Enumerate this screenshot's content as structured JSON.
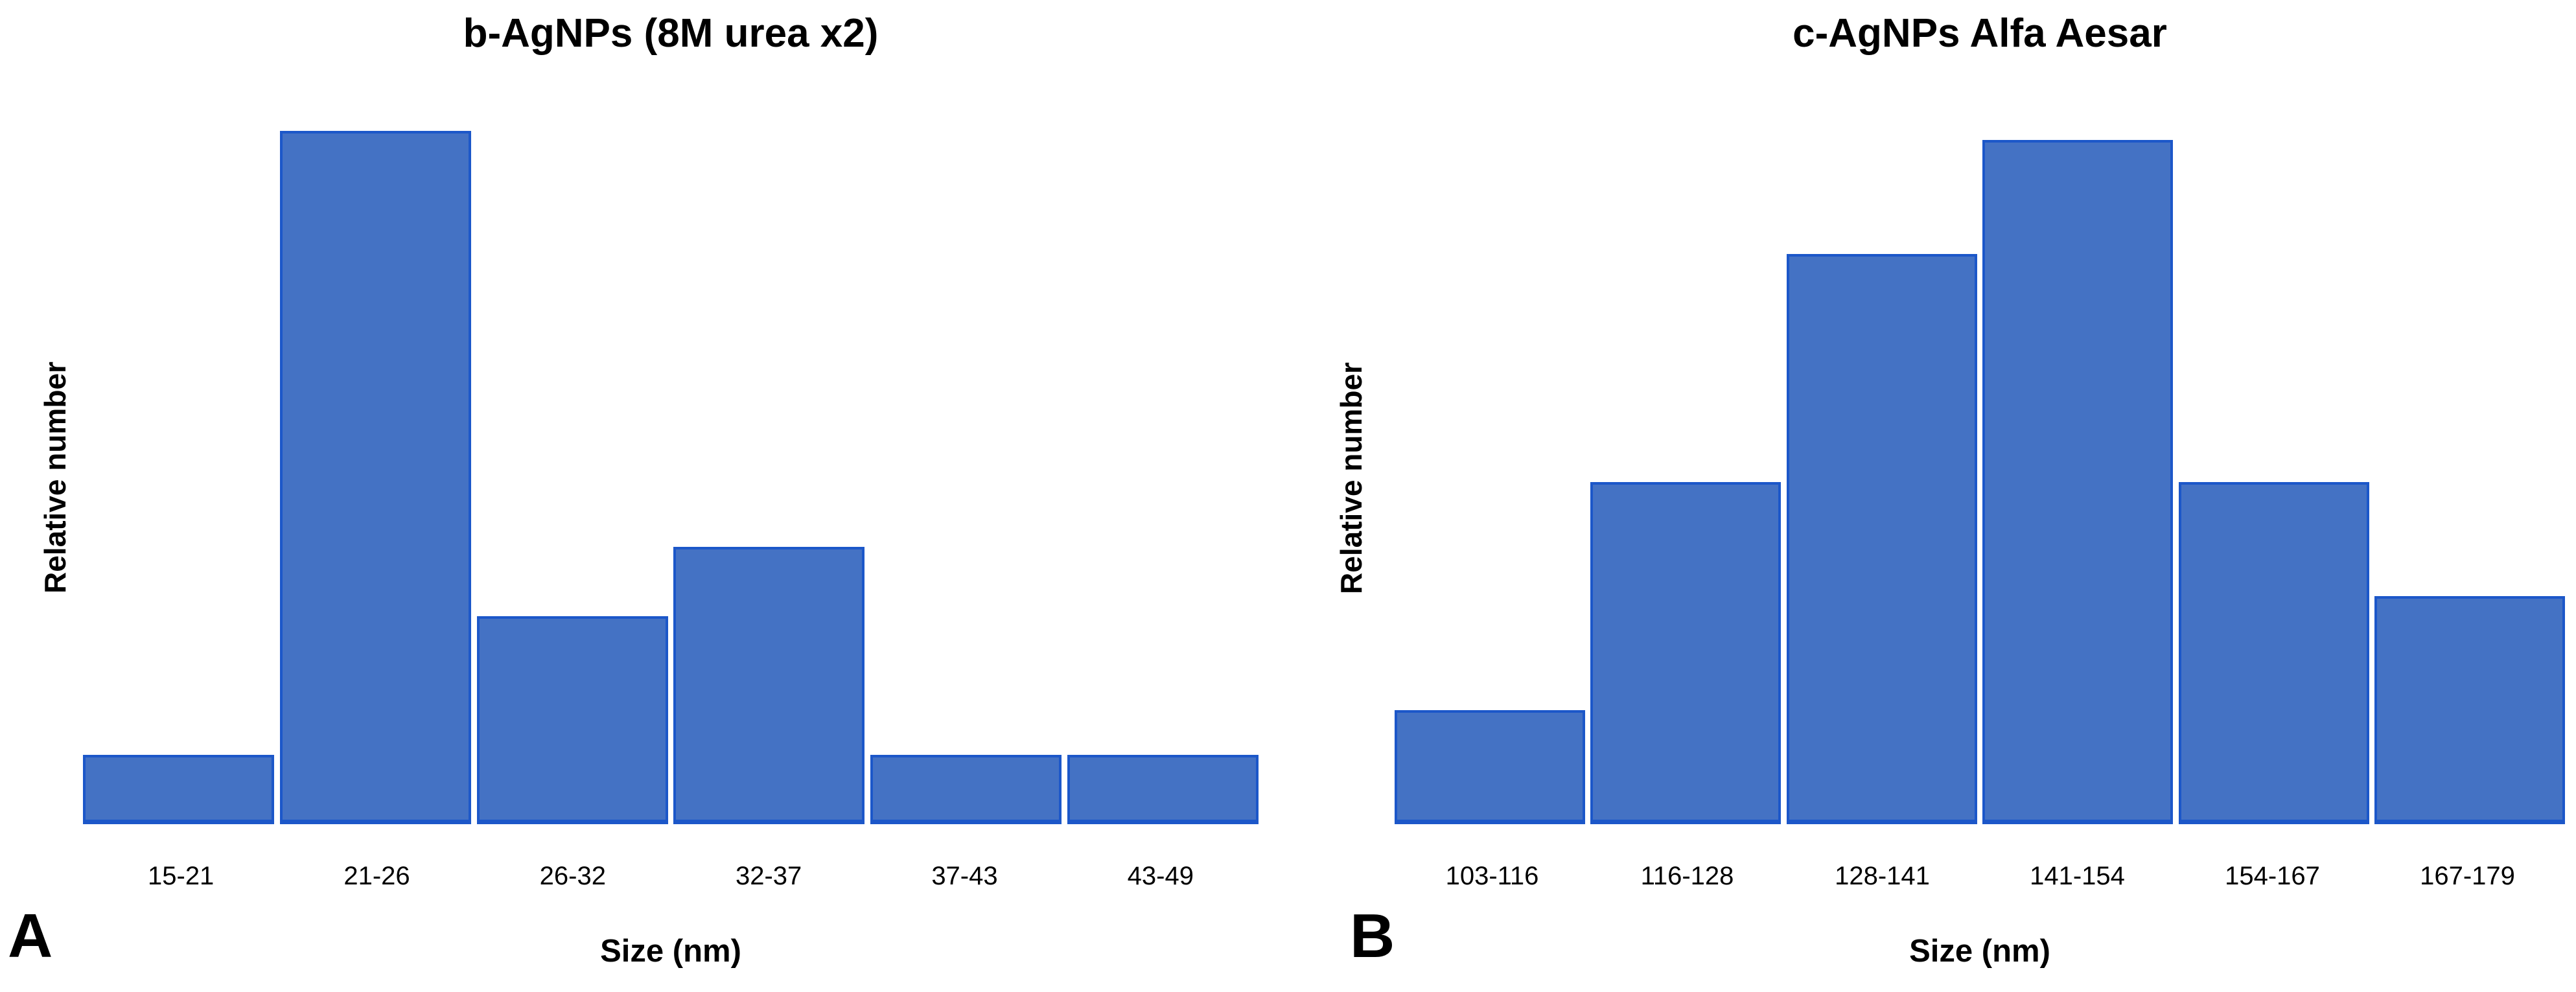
{
  "figure": {
    "background": "#ffffff",
    "text_color": "#000000"
  },
  "colors": {
    "bar_fill": "#4472C4",
    "bar_border": "#1C57C9"
  },
  "chart_data": [
    {
      "type": "bar",
      "subtype": "histogram",
      "panel_label": "A",
      "title": "b-AgNPs (8M urea x2)",
      "xlabel": "Size (nm)",
      "ylabel": "Relative number",
      "categories": [
        "15-21",
        "21-26",
        "26-32",
        "32-37",
        "37-43",
        "43-49"
      ],
      "values": [
        1,
        10,
        3,
        4,
        1,
        1
      ],
      "ylim": [
        0,
        10
      ],
      "y_tick_labels_visible": false,
      "grid": false,
      "legend": "none"
    },
    {
      "type": "bar",
      "subtype": "histogram",
      "panel_label": "B",
      "title": "c-AgNPs Alfa Aesar",
      "xlabel": "Size (nm)",
      "ylabel": "Relative number",
      "categories": [
        "103-116",
        "116-128",
        "128-141",
        "141-154",
        "154-167",
        "167-179"
      ],
      "values": [
        1,
        3,
        5,
        6,
        3,
        2
      ],
      "ylim": [
        0,
        6
      ],
      "y_tick_labels_visible": false,
      "grid": false,
      "legend": "none"
    }
  ]
}
